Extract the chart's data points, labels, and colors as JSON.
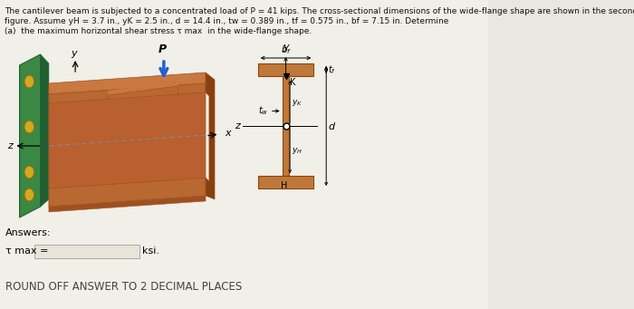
{
  "bg_color": "#e8e8e0",
  "panel_bg": "#f0efe8",
  "title_lines": [
    "The cantilever beam is subjected to a concentrated load of P = 41 kips. The cross-sectional dimensions of the wide-flange shape are shown in the second",
    "figure. Assume yH = 3.7 in., yK = 2.5 in., d = 14.4 in., tw = 0.389 in., tf = 0.575 in., bf = 7.15 in. Determine",
    "(a)  the maximum horizontal shear stress τ max  in the wide-flange shape."
  ],
  "answers_label": "Answers:",
  "tmax_label": "τ max =",
  "ksi_label": "ksi.",
  "round_label": "ROUND OFF ANSWER TO 2 DECIMAL PLACES",
  "beam_top_color": "#c87840",
  "beam_front_color": "#b86830",
  "beam_dark_color": "#a05020",
  "beam_shadow_color": "#884010",
  "wall_color": "#3a8844",
  "wall_dark_color": "#206030",
  "bolt_color": "#d4a820",
  "arrow_blue": "#2060cc",
  "ibeam_color": "#c07838",
  "ibeam_edge": "#884418"
}
